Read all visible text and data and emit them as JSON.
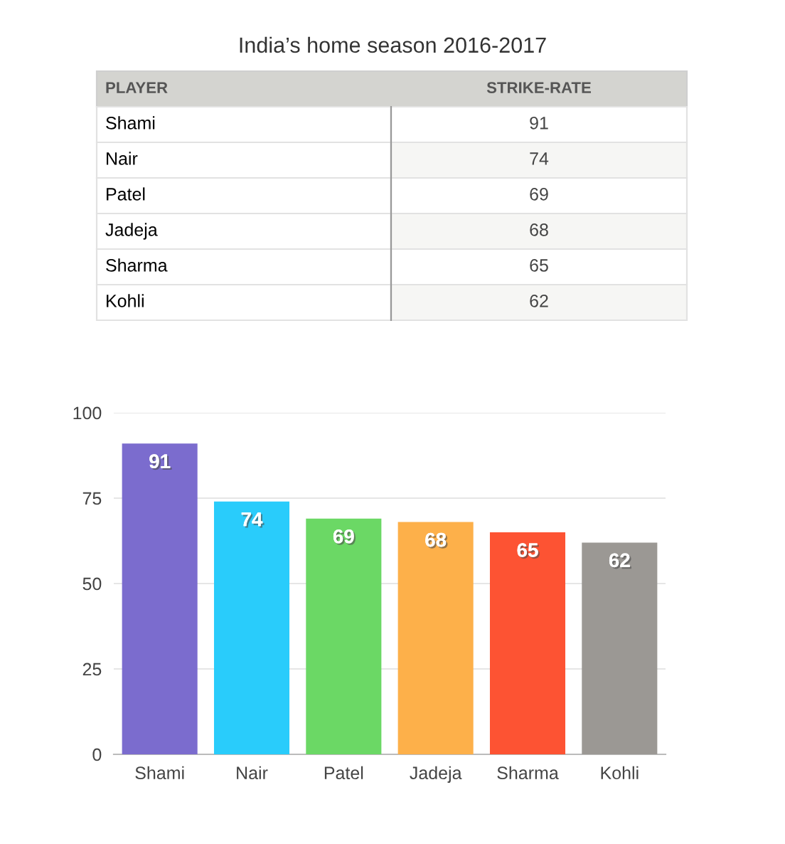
{
  "chart_data": {
    "type": "bar",
    "title": "India’s home season 2016-2017",
    "annotations": [
      "PLAYER",
      "STRIKE-RATE",
      "91",
      "74",
      "69",
      "68",
      "65",
      "62"
    ],
    "categories": [
      "Shami",
      "Nair",
      "Patel",
      "Jadeja",
      "Sharma",
      "Kohli"
    ],
    "values": [
      91,
      74,
      69,
      68,
      65,
      62
    ],
    "colors": [
      "#7b6cce",
      "#29ccfb",
      "#6bd865",
      "#fdb04a",
      "#fd5333",
      "#9b9894"
    ],
    "ylim": [
      0,
      100
    ],
    "yticks": [
      0,
      25,
      50,
      75,
      100
    ],
    "grid": "y",
    "data_labels": true
  }
}
